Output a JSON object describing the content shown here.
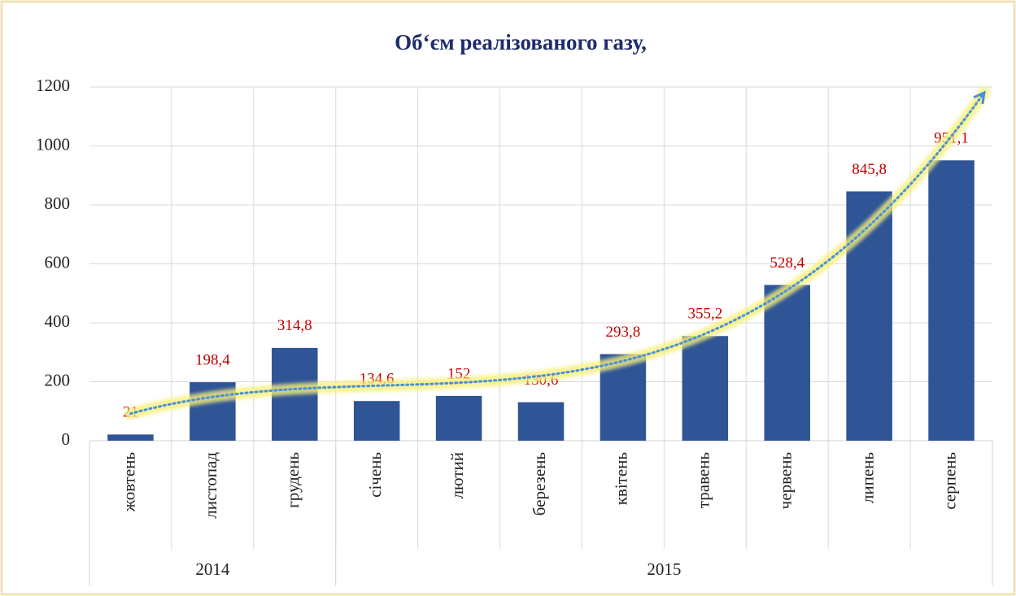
{
  "chart_data": {
    "type": "bar",
    "title": "Об‘єм реалізованого газу,",
    "categories": [
      "жовтень",
      "листопад",
      "грудень",
      "січень",
      "лютий",
      "березень",
      "квітень",
      "травень",
      "червень",
      "липень",
      "серпень"
    ],
    "category_groups": [
      {
        "label": "2014",
        "count": 3
      },
      {
        "label": "2015",
        "count": 8
      }
    ],
    "values": [
      21,
      198.4,
      314.8,
      134.6,
      152,
      130.6,
      293.8,
      355.2,
      528.4,
      845.8,
      951.1
    ],
    "value_labels": [
      "21",
      "198,4",
      "314,8",
      "134,6",
      "152",
      "130,6",
      "293,8",
      "355,2",
      "528,4",
      "845,8",
      "951,1"
    ],
    "color": "#2f5597",
    "label_color": "#c00000",
    "ylim": [
      0,
      1200
    ],
    "yticks": [
      0,
      200,
      400,
      600,
      800,
      1000,
      1200
    ],
    "grid": true,
    "trendline": true
  }
}
